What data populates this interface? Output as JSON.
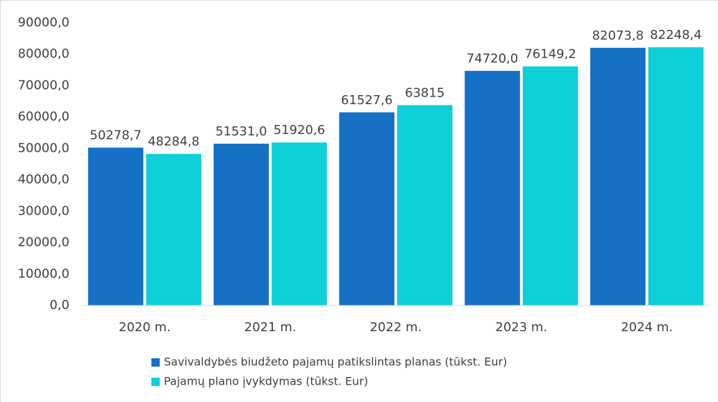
{
  "chart_data": {
    "type": "bar",
    "categories": [
      "2020 m.",
      "2021 m.",
      "2022 m.",
      "2023 m.",
      "2024 m."
    ],
    "series": [
      {
        "name": "Savivaldybės biudžeto pajamų patikslintas planas (tūkst. Eur)",
        "color": "#1570c6",
        "values": [
          50278.7,
          51531.0,
          61527.6,
          74720.0,
          82073.8
        ],
        "value_labels": [
          "50278,7",
          "51531,0",
          "61527,6",
          "74720,0",
          "82073,8"
        ]
      },
      {
        "name": "Pajamų plano įvykdymas (tūkst. Eur)",
        "color": "#0fcfd9",
        "values": [
          48284.8,
          51920.6,
          63815,
          76149.2,
          82248.4
        ],
        "value_labels": [
          "48284,8",
          "51920,6",
          "63815",
          "76149,2",
          "82248,4"
        ]
      }
    ],
    "ylim": [
      0,
      90000
    ],
    "yticks": [
      {
        "value": 0,
        "label": "0,0"
      },
      {
        "value": 10000,
        "label": "10000,0"
      },
      {
        "value": 20000,
        "label": "20000,0"
      },
      {
        "value": 30000,
        "label": "30000,0"
      },
      {
        "value": 40000,
        "label": "40000,0"
      },
      {
        "value": 50000,
        "label": "50000,0"
      },
      {
        "value": 60000,
        "label": "60000,0"
      },
      {
        "value": 70000,
        "label": "70000,0"
      },
      {
        "value": 80000,
        "label": "80000,0"
      },
      {
        "value": 90000,
        "label": "90000,0"
      }
    ],
    "grid": false,
    "legend": "bottom"
  }
}
